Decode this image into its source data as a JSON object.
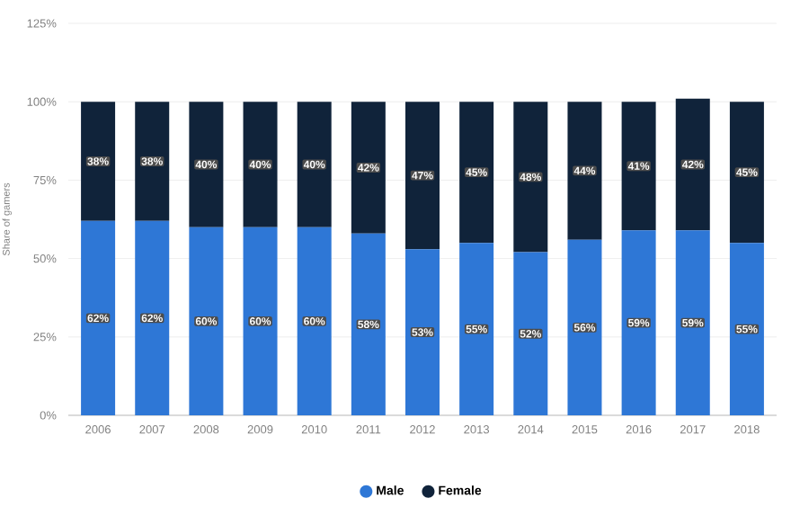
{
  "chart_data": {
    "type": "bar",
    "stacked": true,
    "ylabel": "Share of gamers",
    "categories": [
      "2006",
      "2007",
      "2008",
      "2009",
      "2010",
      "2011",
      "2012",
      "2013",
      "2014",
      "2015",
      "2016",
      "2017",
      "2018"
    ],
    "series": [
      {
        "name": "Male",
        "color": "#2e77d6",
        "values": [
          62,
          62,
          60,
          60,
          60,
          58,
          53,
          55,
          52,
          56,
          59,
          59,
          55
        ],
        "value_labels": [
          "62%",
          "62%",
          "60%",
          "60%",
          "60%",
          "58%",
          "53%",
          "55%",
          "52%",
          "56%",
          "59%",
          "59%",
          "55%"
        ]
      },
      {
        "name": "Female",
        "color": "#10233a",
        "values": [
          38,
          38,
          40,
          40,
          40,
          42,
          47,
          45,
          48,
          44,
          41,
          42,
          45
        ],
        "value_labels": [
          "38%",
          "38%",
          "40%",
          "40%",
          "40%",
          "42%",
          "47%",
          "45%",
          "48%",
          "44%",
          "41%",
          "42%",
          "45%"
        ]
      }
    ],
    "ylim": [
      0,
      125
    ],
    "yticks": [
      {
        "value": 0,
        "label": "0%"
      },
      {
        "value": 25,
        "label": "25%"
      },
      {
        "value": 50,
        "label": "50%"
      },
      {
        "value": 75,
        "label": "75%"
      },
      {
        "value": 100,
        "label": "100%"
      },
      {
        "value": 125,
        "label": "125%"
      }
    ],
    "grid": "y",
    "legend": "bottom"
  }
}
